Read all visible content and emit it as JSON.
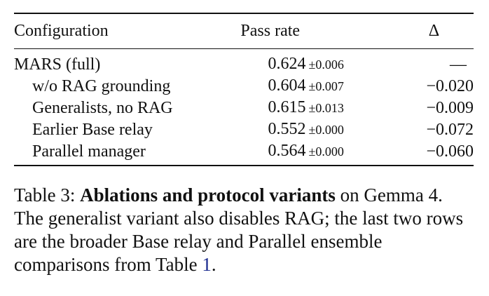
{
  "table": {
    "headers": [
      "Configuration",
      "Pass rate",
      "Δ"
    ],
    "rows": [
      {
        "config": "MARS (full)",
        "rate": "0.624",
        "pm": "±0.006",
        "delta": "—",
        "indent": false
      },
      {
        "config": "w/o RAG grounding",
        "rate": "0.604",
        "pm": "±0.007",
        "delta": "−0.020",
        "indent": true
      },
      {
        "config": "Generalists, no RAG",
        "rate": "0.615",
        "pm": "±0.013",
        "delta": "−0.009",
        "indent": true
      },
      {
        "config": "Earlier Base relay",
        "rate": "0.552",
        "pm": "±0.000",
        "delta": "−0.072",
        "indent": true
      },
      {
        "config": "Parallel manager",
        "rate": "0.564",
        "pm": "±0.000",
        "delta": "−0.060",
        "indent": true
      }
    ]
  },
  "caption": {
    "label": "Table 3:",
    "bold": "Ablations and protocol variants",
    "text1": " on Gemma 4. The generalist variant also disables RAG; the last two rows are the broader Base relay and Parallel ensemble comparisons from Table ",
    "ref": "1",
    "text2": "."
  }
}
